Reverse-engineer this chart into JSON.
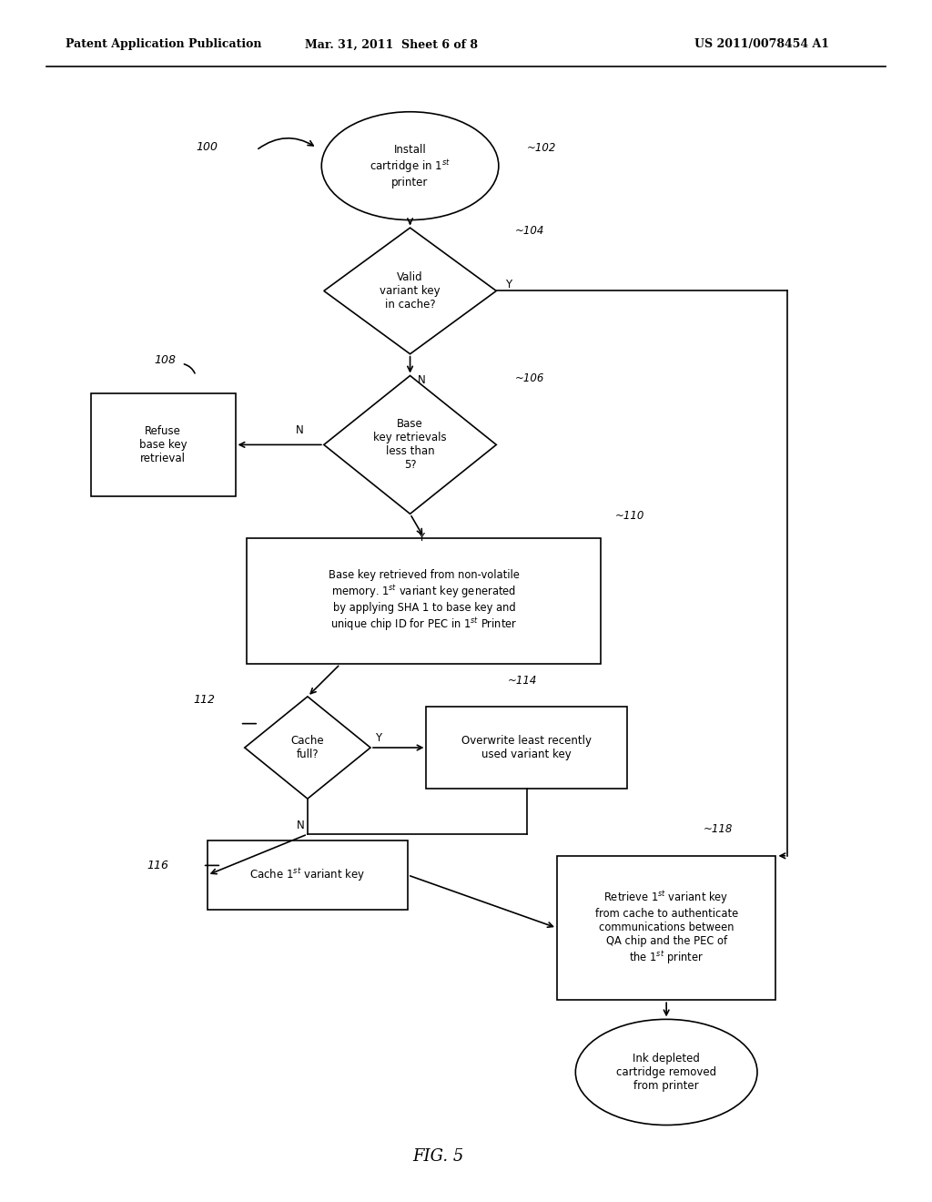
{
  "header_left": "Patent Application Publication",
  "header_mid": "Mar. 31, 2011  Sheet 6 of 8",
  "header_right": "US 2011/0078454 A1",
  "footer": "FIG. 5",
  "bg_color": "#ffffff",
  "line_color": "#000000"
}
